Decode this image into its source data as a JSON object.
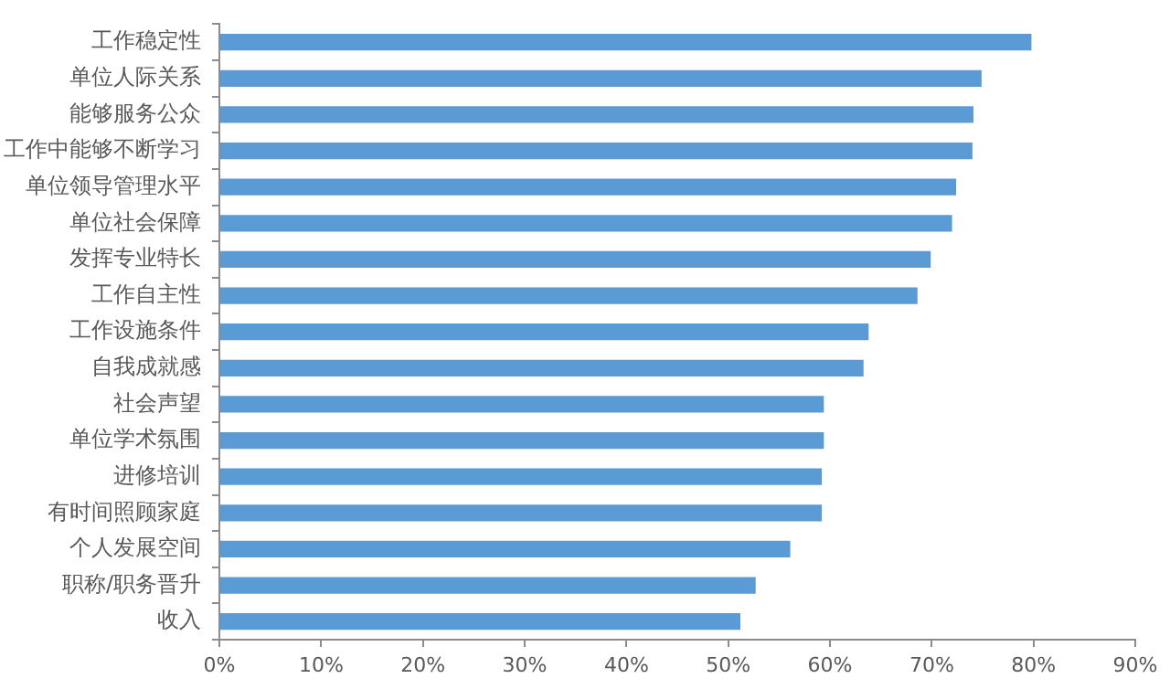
{
  "chart_data": {
    "type": "bar",
    "orientation": "horizontal",
    "categories": [
      "工作稳定性",
      "单位人际关系",
      "能够服务公众",
      "工作中能够不断学习",
      "单位领导管理水平",
      "单位社会保障",
      "发挥专业特长",
      "工作自主性",
      "工作设施条件",
      "自我成就感",
      "社会声望",
      "单位学术氛围",
      "进修培训",
      "有时间照顾家庭",
      "个人发展空间",
      "职称/职务晋升",
      "收入"
    ],
    "values": [
      79.8,
      74.9,
      74.1,
      74.0,
      72.4,
      72.0,
      69.9,
      68.6,
      63.8,
      63.3,
      59.4,
      59.4,
      59.2,
      59.2,
      56.1,
      52.7,
      51.2
    ],
    "color": "#5b9bd5",
    "xlim": [
      0,
      90
    ],
    "xticks": [
      {
        "value": 0,
        "label": "0%"
      },
      {
        "value": 10,
        "label": "10%"
      },
      {
        "value": 20,
        "label": "20%"
      },
      {
        "value": 30,
        "label": "30%"
      },
      {
        "value": 40,
        "label": "40%"
      },
      {
        "value": 50,
        "label": "50%"
      },
      {
        "value": 60,
        "label": "60%"
      },
      {
        "value": 70,
        "label": "70%"
      },
      {
        "value": 80,
        "label": "80%"
      },
      {
        "value": 90,
        "label": "90%"
      }
    ],
    "grid": false
  }
}
